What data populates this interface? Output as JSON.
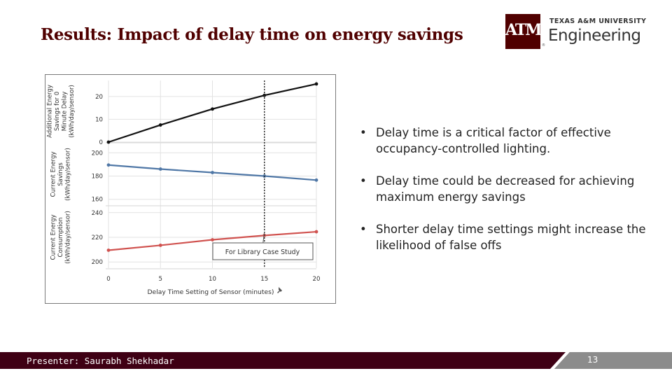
{
  "slide": {
    "title": "Results: Impact of delay time on energy savings",
    "presenter": "Presenter: Saurabh Shekhadar",
    "page_number": "13"
  },
  "logo": {
    "mark": "ATM",
    "university": "TEXAS A&M UNIVERSITY",
    "department": "Engineering",
    "tm": "®"
  },
  "bullets": [
    "Delay time is a critical factor of effective occupancy-controlled lighting.",
    "Delay time could be decreased for achieving maximum energy savings",
    "Shorter delay time settings might increase the likelihood of false offs"
  ],
  "bullet_glyph": "•",
  "colors": {
    "brand_maroon": "#500000",
    "footer": "#3f0014",
    "series_black": "#111111",
    "series_blue": "#4f77a6",
    "series_red": "#d0524f"
  },
  "chart_data": {
    "type": "line",
    "xlabel": "Delay Time Setting of Sensor (minutes)",
    "x_ticks": [
      "0",
      "5",
      "10",
      "15",
      "20"
    ],
    "xlim": [
      0,
      20
    ],
    "annotation": {
      "text": "For Library Case Study",
      "x": 15
    },
    "panels": [
      {
        "ylabel": [
          "Additional Energy",
          "Savings for 0",
          "Minute Delay",
          "(kWh/day/sensor)"
        ],
        "ylim": [
          0,
          27
        ],
        "y_ticks": [
          0,
          10,
          20
        ],
        "series": {
          "color": "#111111",
          "x": [
            0,
            5,
            10,
            15,
            20
          ],
          "y": [
            0,
            7.5,
            14.5,
            20.5,
            25.5
          ]
        }
      },
      {
        "ylabel": [
          "Current Energy",
          "Savings",
          "(kWh/day/sensor)"
        ],
        "ylim": [
          155,
          208
        ],
        "y_ticks": [
          160,
          180,
          200
        ],
        "series": {
          "color": "#4f77a6",
          "x": [
            0,
            5,
            10,
            15,
            20
          ],
          "y": [
            189.5,
            186,
            183,
            180,
            176.5
          ]
        }
      },
      {
        "ylabel": [
          "Current Energy",
          "Consumption",
          "(kWh/day/sensor)"
        ],
        "ylim": [
          195,
          245
        ],
        "y_ticks": [
          200,
          220,
          240
        ],
        "series": {
          "color": "#d0524f",
          "x": [
            0,
            5,
            10,
            15,
            20
          ],
          "y": [
            209.5,
            213.5,
            218,
            221.5,
            224.5
          ]
        }
      }
    ]
  }
}
